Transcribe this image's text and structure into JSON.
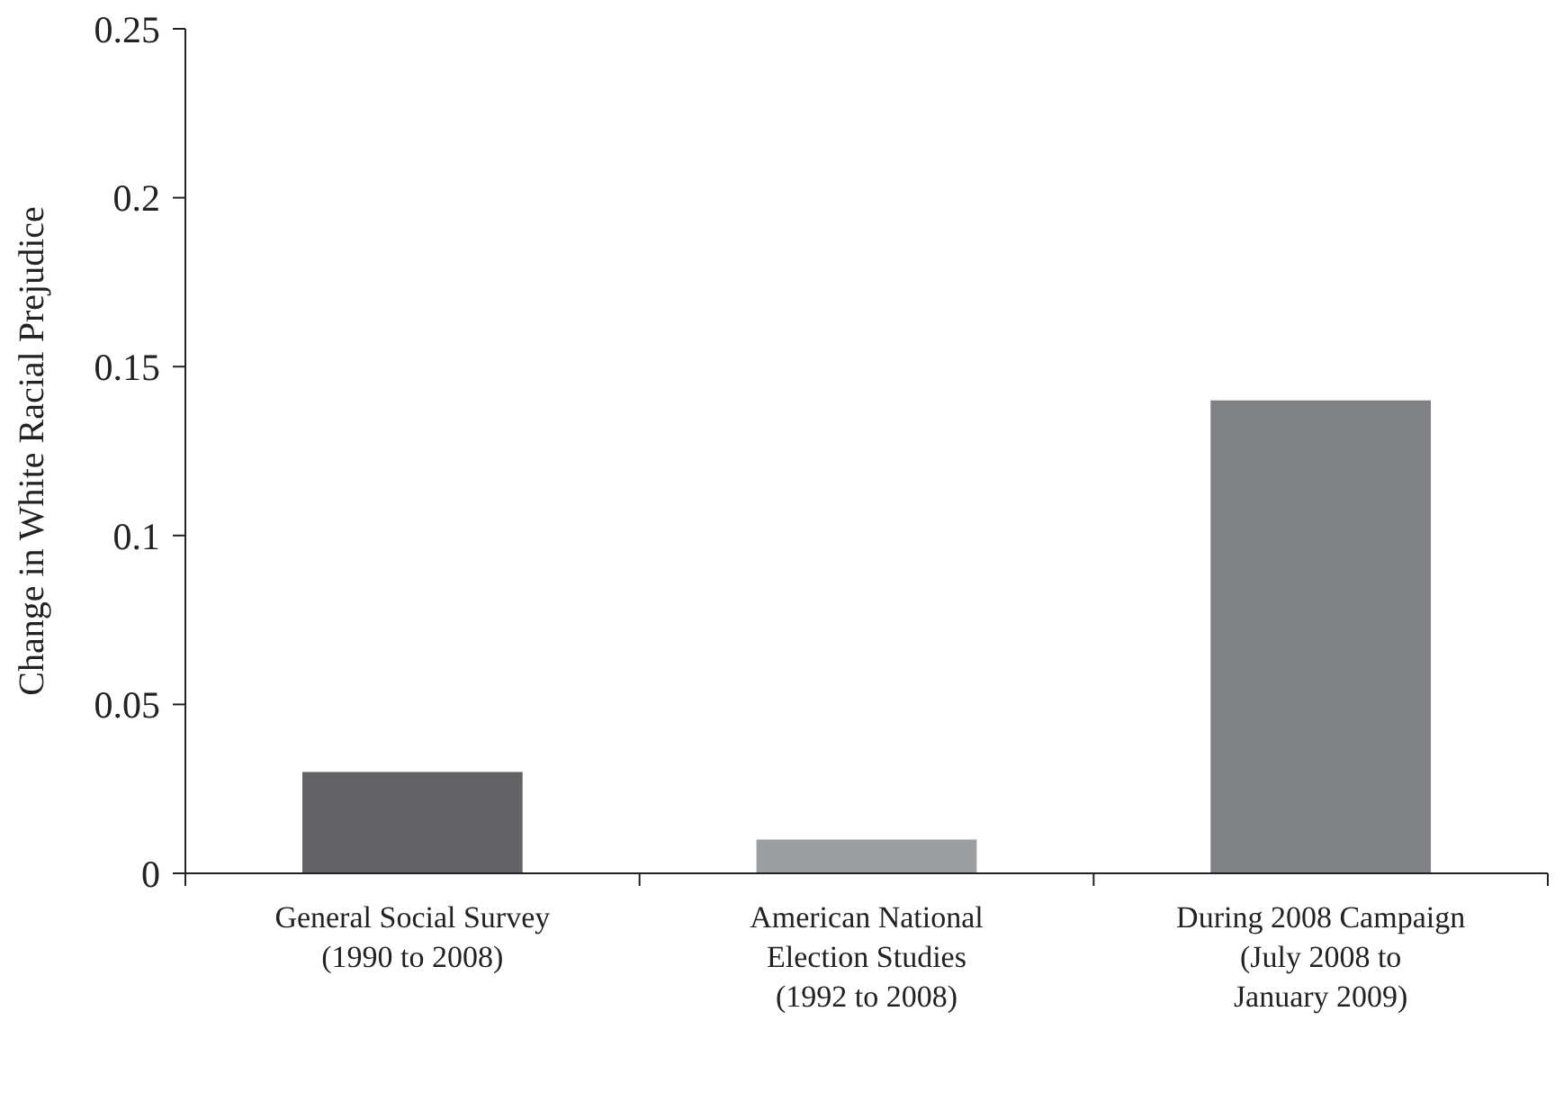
{
  "chart_data": {
    "type": "bar",
    "ylabel": "Change in White Racial Prejudice",
    "categories": [
      "General Social Survey\n(1990 to 2008)",
      "American National\nElection Studies\n(1992 to 2008)",
      "During 2008 Campaign\n(July 2008 to\nJanuary 2009)"
    ],
    "values": [
      0.03,
      0.01,
      0.14
    ],
    "colors": [
      "#636365",
      "#9d9ea0",
      "#808184"
    ],
    "ylim": [
      0,
      0.25
    ],
    "yticks": [
      0,
      0.05,
      0.1,
      0.15,
      0.2,
      0.25
    ],
    "grid": false
  }
}
